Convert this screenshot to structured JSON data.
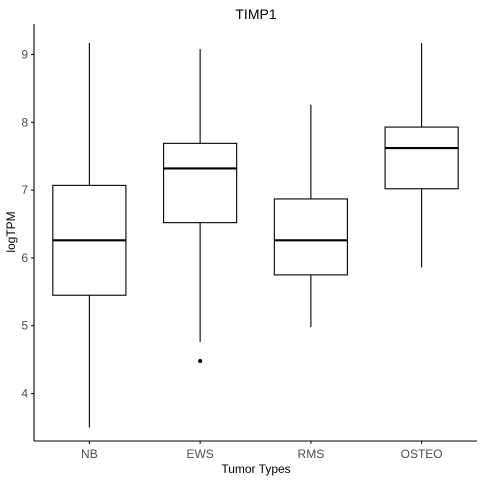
{
  "chart_data": {
    "type": "boxplot",
    "title": "TIMP1",
    "xlabel": "Tumor Types",
    "ylabel": "logTPM",
    "ylim": [
      3.3,
      9.45
    ],
    "yticks": [
      4,
      5,
      6,
      7,
      8,
      9
    ],
    "grid": false,
    "categories": [
      "NB",
      "EWS",
      "RMS",
      "OSTEO"
    ],
    "boxes": [
      {
        "category": "NB",
        "whisker_low": 3.5,
        "q1": 5.45,
        "median": 6.26,
        "q3": 7.07,
        "whisker_high": 9.17,
        "outliers": []
      },
      {
        "category": "EWS",
        "whisker_low": 4.76,
        "q1": 6.52,
        "median": 7.32,
        "q3": 7.69,
        "whisker_high": 9.08,
        "outliers": [
          4.48
        ]
      },
      {
        "category": "RMS",
        "whisker_low": 4.98,
        "q1": 5.75,
        "median": 6.26,
        "q3": 6.87,
        "whisker_high": 8.26,
        "outliers": []
      },
      {
        "category": "OSTEO",
        "whisker_low": 5.86,
        "q1": 7.02,
        "median": 7.62,
        "q3": 7.93,
        "whisker_high": 9.17,
        "outliers": []
      }
    ],
    "colors": {
      "line": "#000000",
      "fill": "#ffffff",
      "tick_text": "#4d4d4d"
    }
  }
}
